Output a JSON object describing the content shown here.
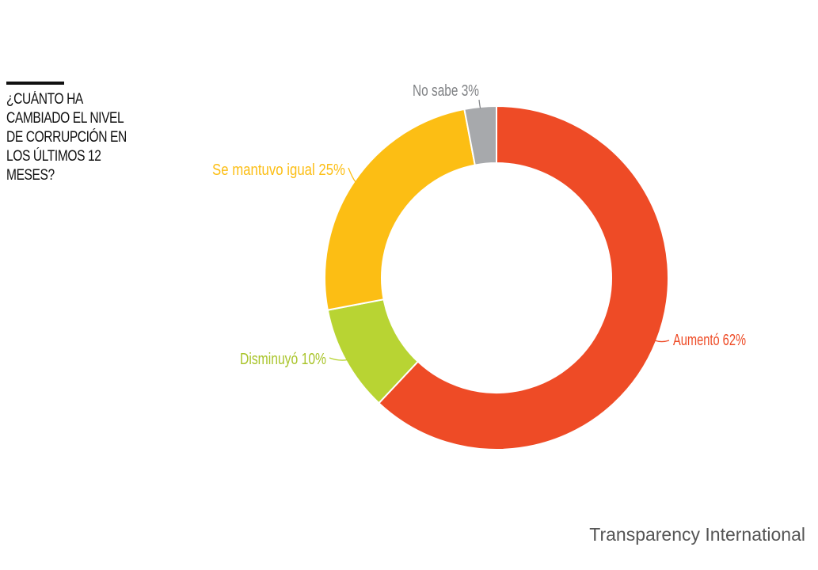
{
  "title_lines": [
    "¿CUÁNTO HA",
    "CAMBIADO EL NIVEL",
    "DE CORRUPCIÓN EN",
    "LOS ÚLTIMOS 12",
    "MESES?"
  ],
  "source": "Transparency International",
  "chart_data": {
    "type": "pie",
    "variant": "donut",
    "title": "¿CUÁNTO HA CAMBIADO EL NIVEL DE CORRUPCIÓN EN LOS ÚLTIMOS 12 MESES?",
    "unit": "%",
    "start": "12 o'clock",
    "direction": "clockwise",
    "slices": [
      {
        "label": "Aumentó",
        "value": 62,
        "display": "Aumentó 62%",
        "color": "#EE4B26"
      },
      {
        "label": "Disminuyó",
        "value": 10,
        "display": "Disminuyó 10%",
        "color": "#B8D433"
      },
      {
        "label": "Se mantuvo igual",
        "value": 25,
        "display": "Se mantuvo igual 25%",
        "color": "#FCBE14"
      },
      {
        "label": "No sabe",
        "value": 3,
        "display": "No sabe 3%",
        "color": "#A7A9AC"
      }
    ]
  }
}
